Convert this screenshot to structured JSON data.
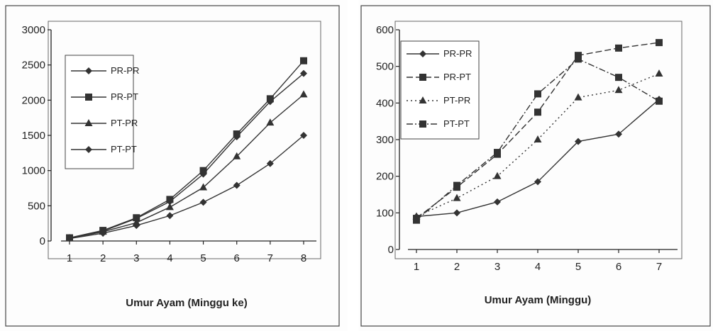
{
  "chart_data": [
    {
      "type": "line",
      "title": "",
      "xlabel": "Umur Ayam (Minggu ke)",
      "ylabel": "",
      "x": [
        1,
        2,
        3,
        4,
        5,
        6,
        7,
        8
      ],
      "ylim": [
        0,
        3000
      ],
      "yticks": [
        0,
        500,
        1000,
        1500,
        2000,
        2500,
        3000
      ],
      "grid": false,
      "legend_position": "top-left",
      "series": [
        {
          "name": "PR-PR",
          "marker": "diamond",
          "dash": "solid",
          "values": [
            40,
            140,
            320,
            560,
            950,
            1480,
            1980,
            2380
          ]
        },
        {
          "name": "PR-PT",
          "marker": "square",
          "dash": "solid",
          "values": [
            45,
            150,
            330,
            590,
            1000,
            1520,
            2020,
            2560
          ]
        },
        {
          "name": "PT-PR",
          "marker": "triangle",
          "dash": "solid",
          "values": [
            40,
            130,
            260,
            480,
            760,
            1200,
            1680,
            2080
          ]
        },
        {
          "name": "PT-PT",
          "marker": "diamond",
          "dash": "solid",
          "values": [
            35,
            110,
            220,
            360,
            550,
            790,
            1100,
            1500
          ]
        }
      ]
    },
    {
      "type": "line",
      "title": "",
      "xlabel": "Umur Ayam (Minggu)",
      "ylabel": "",
      "x": [
        1,
        2,
        3,
        4,
        5,
        6,
        7
      ],
      "ylim": [
        0,
        600
      ],
      "yticks": [
        0,
        100,
        200,
        300,
        400,
        500,
        600
      ],
      "grid": false,
      "legend_position": "top-left",
      "series": [
        {
          "name": "PR-PR",
          "marker": "diamond",
          "dash": "solid",
          "values": [
            90,
            100,
            130,
            185,
            295,
            315,
            410
          ]
        },
        {
          "name": "PR-PT",
          "marker": "square",
          "dash": "dashed",
          "values": [
            85,
            170,
            260,
            375,
            530,
            550,
            565
          ]
        },
        {
          "name": "PT-PR",
          "marker": "triangle",
          "dash": "dotted",
          "values": [
            90,
            140,
            200,
            300,
            415,
            435,
            480
          ]
        },
        {
          "name": "PT-PT",
          "marker": "square",
          "dash": "dashdot",
          "values": [
            80,
            175,
            265,
            425,
            520,
            470,
            405
          ]
        }
      ]
    }
  ]
}
